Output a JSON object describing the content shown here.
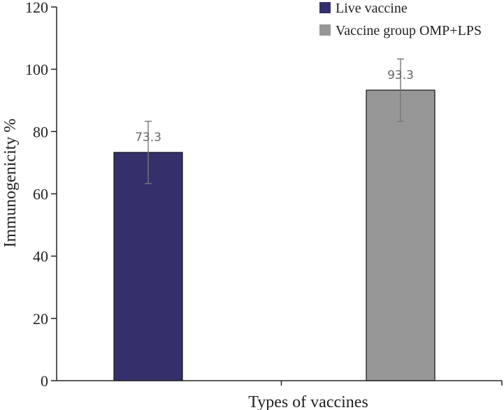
{
  "chart_data": {
    "type": "bar",
    "title": "",
    "xlabel": "Types of vaccines",
    "ylabel": "Immunogenicity %",
    "ylim": [
      0,
      120
    ],
    "yticks": [
      0,
      20,
      40,
      60,
      80,
      100,
      120
    ],
    "grid": false,
    "legend_position": "top-right",
    "series": [
      {
        "name": "Live vaccine",
        "value": 73.3,
        "error": 10,
        "label": "73.3",
        "color": "#33306b"
      },
      {
        "name": "Vaccine group OMP+LPS",
        "value": 93.3,
        "error": 10,
        "label": "93.3",
        "color": "#979797"
      }
    ]
  }
}
